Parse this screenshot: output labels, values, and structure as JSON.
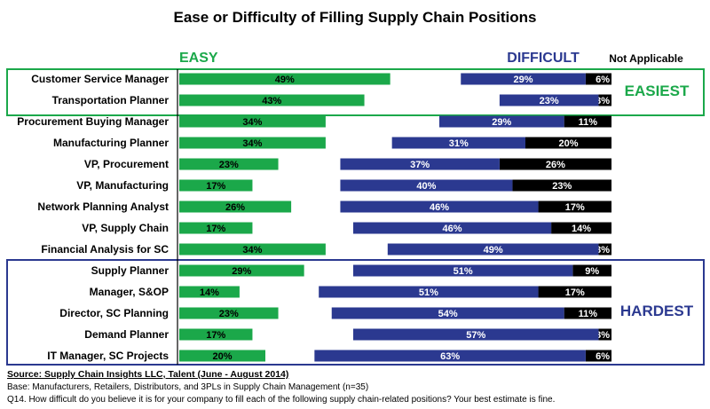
{
  "chart_data": {
    "type": "bar",
    "title": "Ease or Difficulty of Filling Supply Chain Positions",
    "column_headers": {
      "easy": "EASY",
      "difficult": "DIFFICULT",
      "not_applicable": "Not Applicable"
    },
    "group_labels": {
      "easiest": "EASIEST",
      "hardest": "HARDEST"
    },
    "categories": [
      "Customer Service Manager",
      "Transportation Planner",
      "Procurement Buying Manager",
      "Manufacturing Planner",
      "VP, Procurement",
      "VP, Manufacturing",
      "Network Planning Analyst",
      "VP, Supply Chain",
      "Financial Analysis for SC",
      "Supply Planner",
      "Manager, S&OP",
      "Director, SC Planning",
      "Demand Planner",
      "IT Manager, SC Projects"
    ],
    "unit": "%",
    "series": [
      {
        "name": "EASY",
        "color": "#1ba84a",
        "values": [
          49,
          43,
          34,
          34,
          23,
          17,
          26,
          17,
          34,
          29,
          14,
          23,
          17,
          20
        ]
      },
      {
        "name": "DIFFICULT",
        "color": "#2b3990",
        "values": [
          29,
          23,
          29,
          31,
          37,
          40,
          46,
          46,
          49,
          51,
          51,
          54,
          57,
          63
        ]
      },
      {
        "name": "Not Applicable",
        "color": "#000000",
        "values": [
          6,
          3,
          11,
          20,
          26,
          23,
          17,
          14,
          3,
          9,
          17,
          11,
          3,
          6
        ]
      }
    ],
    "groups": [
      {
        "label": "EASIEST",
        "rows": [
          0,
          1
        ],
        "color": "#1ba84a"
      },
      {
        "label": "HARDEST",
        "rows": [
          9,
          13
        ],
        "color": "#2b3990"
      }
    ],
    "ylim": [
      0,
      100
    ]
  },
  "footer": {
    "source": "Source:  Supply Chain Insights LLC, Talent (June - August 2014)",
    "base": "Base:  Manufacturers, Retailers, Distributors, and 3PLs in Supply Chain Management (n=35)",
    "question": "Q14. How difficult do you believe it is for your company to fill each of the following supply chain-related positions? Your best estimate is fine."
  }
}
